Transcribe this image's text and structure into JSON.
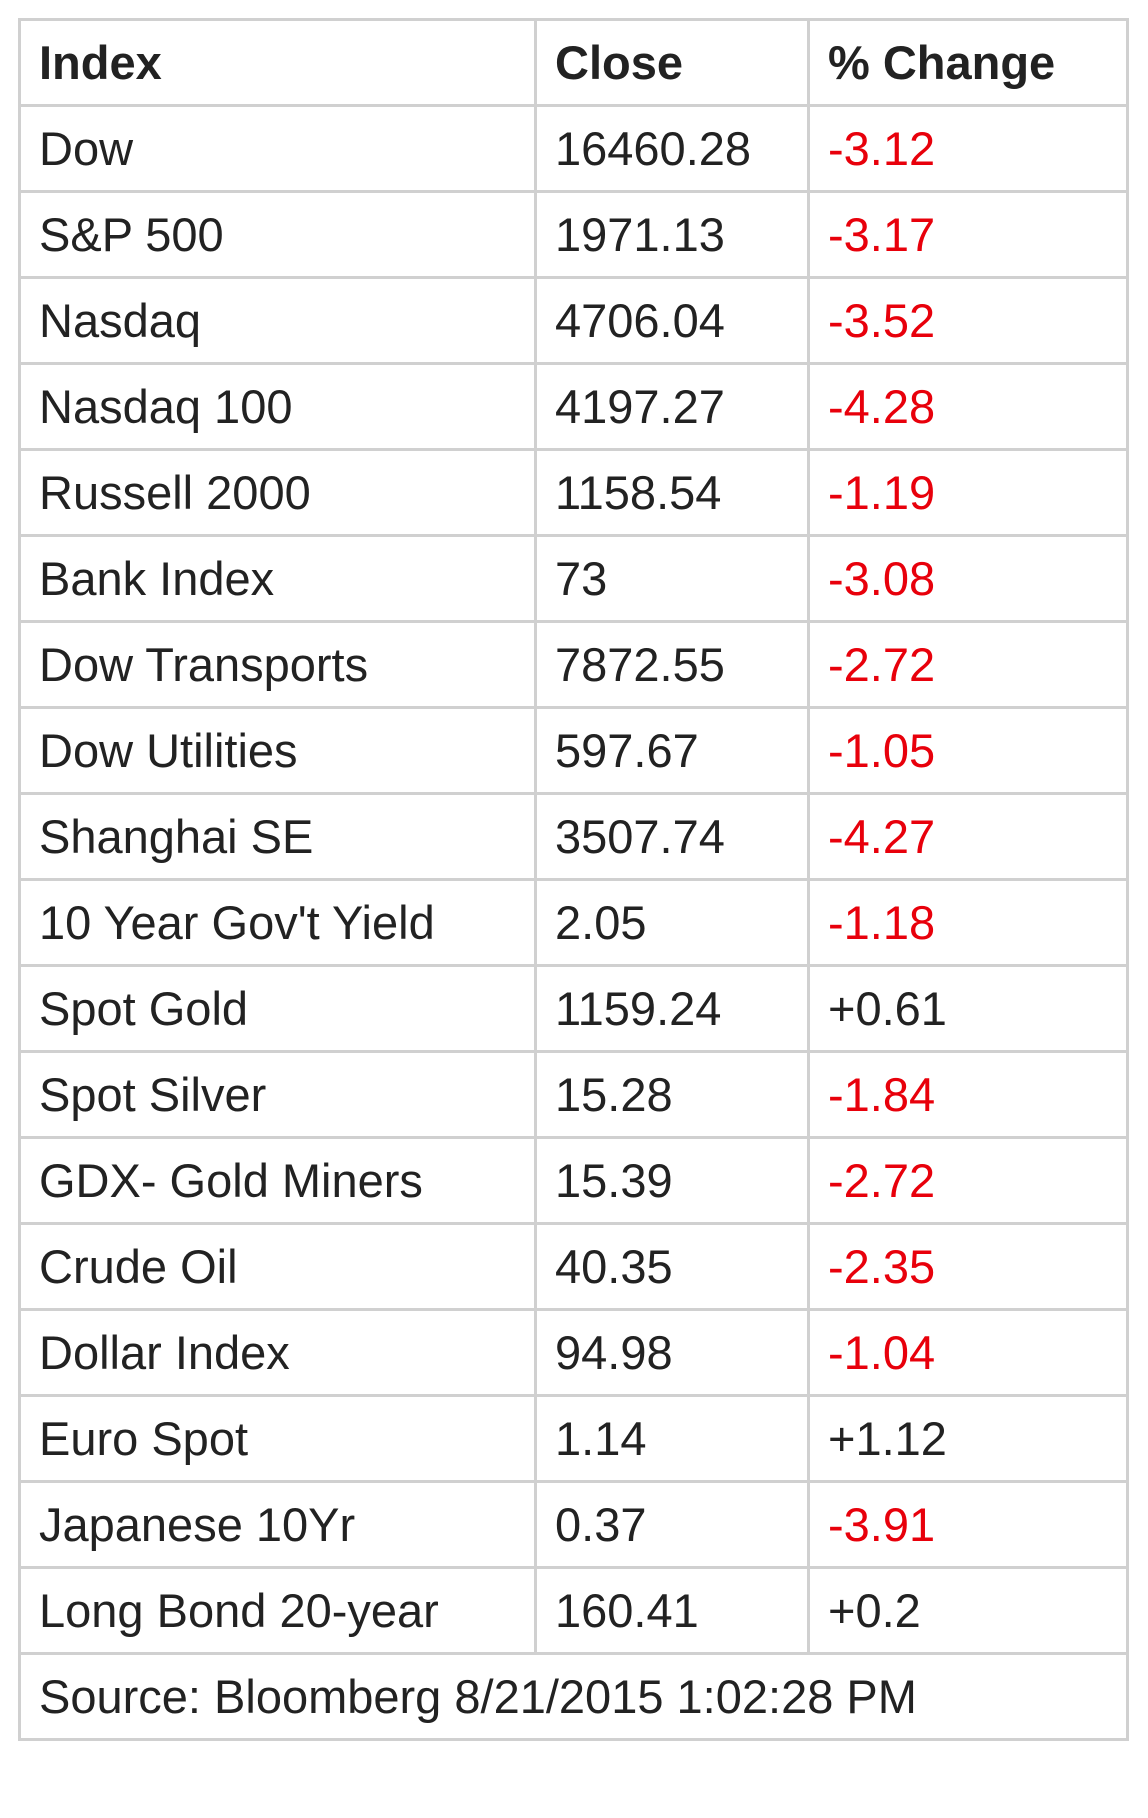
{
  "table": {
    "header": [
      "Index",
      "Close",
      "% Change"
    ],
    "rows": [
      [
        "Dow",
        "16460.28",
        "-3.12"
      ],
      [
        "S&P 500",
        "1971.13",
        "-3.17"
      ],
      [
        "Nasdaq",
        "4706.04",
        "-3.52"
      ],
      [
        "Nasdaq 100",
        "4197.27",
        "-4.28"
      ],
      [
        "Russell 2000",
        "1158.54",
        "-1.19"
      ],
      [
        "Bank Index",
        "73",
        "-3.08"
      ],
      [
        "Dow Transports",
        "7872.55",
        "-2.72"
      ],
      [
        "Dow Utilities",
        "597.67",
        "-1.05"
      ],
      [
        "Shanghai SE",
        "3507.74",
        "-4.27"
      ],
      [
        "10 Year Gov't Yield",
        "2.05",
        "-1.18"
      ],
      [
        "Spot Gold",
        "1159.24",
        "+0.61"
      ],
      [
        "Spot Silver",
        "15.28",
        "-1.84"
      ],
      [
        "GDX- Gold Miners",
        "15.39",
        "-2.72"
      ],
      [
        "Crude Oil",
        "40.35",
        "-2.35"
      ],
      [
        "Dollar Index",
        "94.98",
        "-1.04"
      ],
      [
        "Euro Spot",
        "1.14",
        "+1.12"
      ],
      [
        "Japanese 10Yr",
        "0.37",
        "-3.91"
      ],
      [
        "Long Bond 20-year",
        "160.41",
        "+0.2"
      ]
    ],
    "footer": "Source: Bloomberg 8/21/2015 1:02:28 PM"
  }
}
